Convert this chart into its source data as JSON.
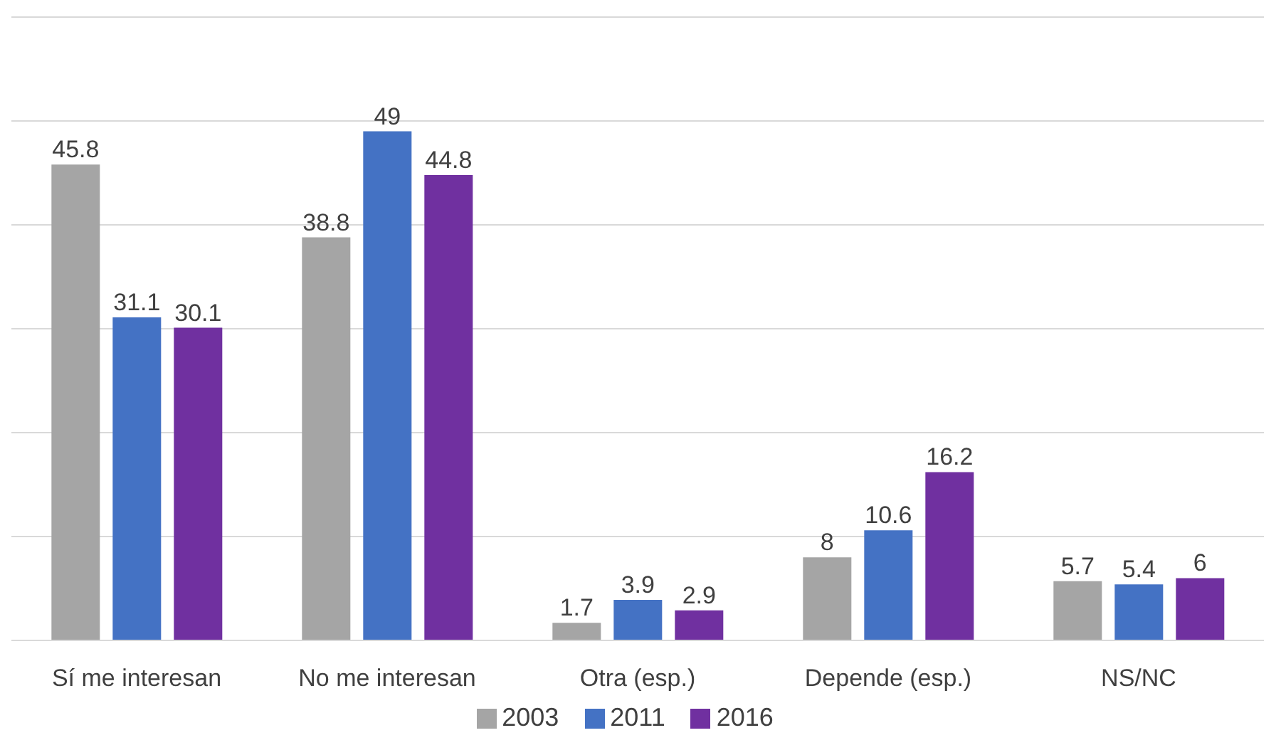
{
  "chart_data": {
    "type": "bar",
    "categories": [
      "Sí me interesan",
      "No me interesan",
      "Otra (esp.)",
      "Depende (esp.)",
      "NS/NC"
    ],
    "series": [
      {
        "name": "2003",
        "color": "#a5a5a5",
        "values": [
          45.8,
          38.8,
          1.7,
          8,
          5.7
        ]
      },
      {
        "name": "2011",
        "color": "#4472c4",
        "values": [
          31.1,
          49,
          3.9,
          10.6,
          5.4
        ]
      },
      {
        "name": "2016",
        "color": "#7030a0",
        "values": [
          30.1,
          44.8,
          2.9,
          16.2,
          6
        ]
      }
    ],
    "ylim": [
      0,
      60
    ],
    "yticks": [
      {
        "value": 0,
        "label": null
      },
      {
        "value": 10,
        "label": null
      },
      {
        "value": 20,
        "label": null
      },
      {
        "value": 30,
        "label": null
      },
      {
        "value": 40,
        "label": null
      },
      {
        "value": 50,
        "label": null
      },
      {
        "value": 60,
        "label": null
      }
    ],
    "data_labels": true,
    "grid": "y",
    "legend": "bottom",
    "tick_labels": "x"
  }
}
